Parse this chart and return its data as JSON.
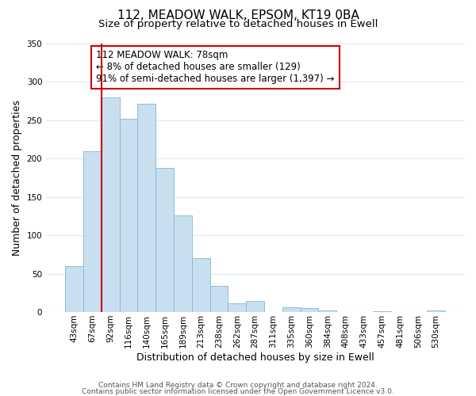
{
  "title": "112, MEADOW WALK, EPSOM, KT19 0BA",
  "subtitle": "Size of property relative to detached houses in Ewell",
  "xlabel": "Distribution of detached houses by size in Ewell",
  "ylabel": "Number of detached properties",
  "categories": [
    "43sqm",
    "67sqm",
    "92sqm",
    "116sqm",
    "140sqm",
    "165sqm",
    "189sqm",
    "213sqm",
    "238sqm",
    "262sqm",
    "287sqm",
    "311sqm",
    "335sqm",
    "360sqm",
    "384sqm",
    "408sqm",
    "433sqm",
    "457sqm",
    "481sqm",
    "506sqm",
    "530sqm"
  ],
  "values": [
    60,
    210,
    280,
    252,
    272,
    188,
    126,
    70,
    34,
    11,
    14,
    0,
    6,
    5,
    2,
    0,
    0,
    1,
    0,
    0,
    2
  ],
  "bar_color": "#c8dff0",
  "bar_edge_color": "#7fb8d8",
  "vline_x_index": 1,
  "vline_color": "#cc0000",
  "annotation_text": "112 MEADOW WALK: 78sqm\n← 8% of detached houses are smaller (129)\n91% of semi-detached houses are larger (1,397) →",
  "annotation_box_color": "#ffffff",
  "annotation_box_edge_color": "#cc0000",
  "ylim": [
    0,
    350
  ],
  "yticks": [
    0,
    50,
    100,
    150,
    200,
    250,
    300,
    350
  ],
  "footer_line1": "Contains HM Land Registry data © Crown copyright and database right 2024.",
  "footer_line2": "Contains public sector information licensed under the Open Government Licence v3.0.",
  "background_color": "#ffffff",
  "grid_color": "#dce8f0",
  "title_fontsize": 11,
  "subtitle_fontsize": 9.5,
  "axis_label_fontsize": 9,
  "tick_fontsize": 7.5,
  "annotation_fontsize": 8.5,
  "footer_fontsize": 6.5
}
